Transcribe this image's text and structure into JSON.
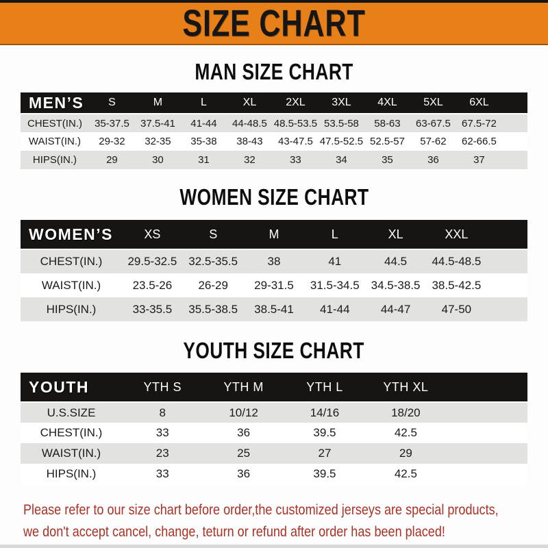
{
  "banner": {
    "title": "SIZE CHART"
  },
  "colors": {
    "banner_bg": "#e8801a",
    "header_bar_bg": "#171513",
    "alt_row_bg": "#e2e2e0",
    "footer_text": "#a93226"
  },
  "sections": {
    "men": {
      "heading": "MAN SIZE CHART",
      "table": {
        "header": [
          "MEN’S",
          "S",
          "M",
          "L",
          "XL",
          "2XL",
          "3XL",
          "4XL",
          "5XL",
          "6XL"
        ],
        "rows": [
          {
            "label": "CHEST(IN.)",
            "values": [
              "35-37.5",
              "37.5-41",
              "41-44",
              "44-48.5",
              "48.5-53.5",
              "53.5-58",
              "58-63",
              "63-67.5",
              "67.5-72"
            ]
          },
          {
            "label": "WAIST(IN.)",
            "values": [
              "29-32",
              "32-35",
              "35-38",
              "38-43",
              "43-47.5",
              "47.5-52.5",
              "52.5-57",
              "57-62",
              "62-66.5"
            ]
          },
          {
            "label": "HIPS(IN.)",
            "values": [
              "29",
              "30",
              "31",
              "32",
              "33",
              "34",
              "35",
              "36",
              "37"
            ]
          }
        ]
      }
    },
    "women": {
      "heading": "WOMEN SIZE CHART",
      "table": {
        "header": [
          "WOMEN’S",
          "XS",
          "S",
          "M",
          "L",
          "XL",
          "XXL"
        ],
        "rows": [
          {
            "label": "CHEST(IN.)",
            "values": [
              "29.5-32.5",
              "32.5-35.5",
              "38",
              "41",
              "44.5",
              "44.5-48.5"
            ]
          },
          {
            "label": "WAIST(IN.)",
            "values": [
              "23.5-26",
              "26-29",
              "29-31.5",
              "31.5-34.5",
              "34.5-38.5",
              "38.5-42.5"
            ]
          },
          {
            "label": "HIPS(IN.)",
            "values": [
              "33-35.5",
              "35.5-38.5",
              "38.5-41",
              "41-44",
              "44-47",
              "47-50"
            ]
          }
        ]
      }
    },
    "youth": {
      "heading": "YOUTH SIZE CHART",
      "table": {
        "header": [
          "YOUTH",
          "YTH S",
          "YTH M",
          "YTH L",
          "YTH XL"
        ],
        "rows": [
          {
            "label": "U.S.SIZE",
            "values": [
              "8",
              "10/12",
              "14/16",
              "18/20"
            ]
          },
          {
            "label": "CHEST(IN.)",
            "values": [
              "33",
              "36",
              "39.5",
              "42.5"
            ]
          },
          {
            "label": "WAIST(IN.)",
            "values": [
              "23",
              "25",
              "27",
              "29"
            ]
          },
          {
            "label": "HIPS(IN.)",
            "values": [
              "33",
              "36",
              "39.5",
              "42.5"
            ]
          }
        ]
      }
    }
  },
  "footer": {
    "line1": "Please refer to our size chart before order,the customized jerseys are special products,",
    "line2": "we don't accept cancel, change, teturn or refund after order has been placed!"
  }
}
